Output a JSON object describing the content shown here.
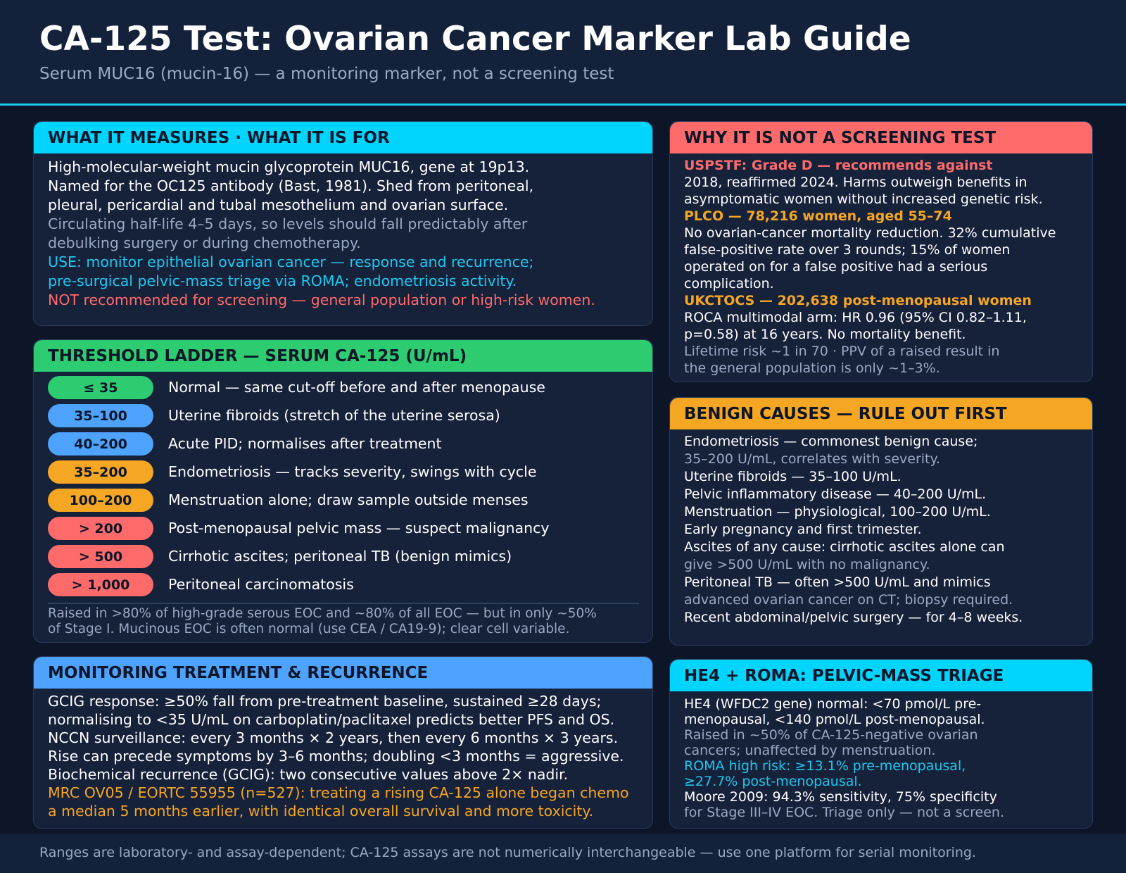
{
  "header": {
    "title": "CA-125 Test: Ovarian Cancer Marker Lab Guide",
    "subtitle": "Serum MUC16 (mucin-16) — a monitoring marker, not a screening test"
  },
  "colors": {
    "cyan": "#1ec8f0",
    "green": "#2ecc71",
    "blue": "#4da3ff",
    "orange": "#f5a623",
    "red": "#ff6b6b"
  },
  "what": {
    "heading": "WHAT IT MEASURES · WHAT IT IS FOR",
    "lines": [
      "High-molecular-weight mucin glycoprotein MUC16, gene at 19p13.",
      "Named for the OC125 antibody (Bast, 1981). Shed from peritoneal,",
      "pleural, pericardial and tubal mesothelium and ovarian surface.",
      "Circulating half-life 4–5 days, so levels should fall predictably after",
      "debulking surgery or during chemotherapy.",
      "USE: monitor epithelial ovarian cancer — response and recurrence;",
      "pre-surgical pelvic-mass triage via ROMA; endometriosis activity.",
      "NOT recommended for screening — general population or high-risk women."
    ]
  },
  "ladder": {
    "heading": "THRESHOLD LADDER — SERUM CA-125 (U/mL)",
    "rungs": [
      {
        "range": "≤ 35",
        "label": "Normal — same cut-off before and after menopause"
      },
      {
        "range": "35–100",
        "label": "Uterine fibroids (stretch of the uterine serosa)"
      },
      {
        "range": "40–200",
        "label": "Acute PID; normalises after treatment"
      },
      {
        "range": "35–200",
        "label": "Endometriosis — tracks severity, swings with cycle"
      },
      {
        "range": "100–200",
        "label": "Menstruation alone; draw sample outside menses"
      },
      {
        "range": "> 200",
        "label": "Post-menopausal pelvic mass — suspect malignancy"
      },
      {
        "range": "> 500",
        "label": "Cirrhotic ascites; peritoneal TB (benign mimics)"
      },
      {
        "range": "> 1,000",
        "label": "Peritoneal carcinomatosis"
      }
    ],
    "note_lines": [
      "Raised in >80% of high-grade serous EOC and ~80% of all EOC — but in only ~50%",
      "of Stage I. Mucinous EOC is often normal (use CEA / CA19-9); clear cell variable."
    ]
  },
  "monitor": {
    "heading": "MONITORING TREATMENT & RECURRENCE",
    "lines": [
      "GCIG response: ≥50% fall from pre-treatment baseline, sustained ≥28 days;",
      "normalising to <35 U/mL on carboplatin/paclitaxel predicts better PFS and OS.",
      "NCCN surveillance: every 3 months × 2 years, then every 6 months × 3 years.",
      "Rise can precede symptoms by 3–6 months; doubling <3 months = aggressive.",
      "Biochemical recurrence (GCIG): two consecutive values above 2× nadir.",
      "MRC OV05 / EORTC 55955 (n=527): treating a rising CA-125 alone began chemo",
      "a median 5 months earlier, with identical overall survival and more toxicity."
    ]
  },
  "why": {
    "heading": "WHY IT IS NOT A SCREENING TEST",
    "lines": [
      "USPSTF: Grade D — recommends against",
      "2018, reaffirmed 2024. Harms outweigh benefits in",
      "asymptomatic women without increased genetic risk.",
      "PLCO — 78,216 women, aged 55–74",
      "No ovarian-cancer mortality reduction. 32% cumulative",
      "false-positive rate over 3 rounds; 15% of women",
      "operated on for a false positive had a serious",
      "complication.",
      "UKCTOCS — 202,638 post-menopausal women",
      "ROCA multimodal arm: HR 0.96 (95% CI 0.82–1.11,",
      "p=0.58) at 16 years. No mortality benefit.",
      "Lifetime risk ~1 in 70 · PPV of a raised result in",
      "the general population is only ~1–3%."
    ]
  },
  "benign": {
    "heading": "BENIGN CAUSES — RULE OUT FIRST",
    "lines": [
      "Endometriosis — commonest benign cause;",
      "35–200 U/mL, correlates with severity.",
      "Uterine fibroids — 35–100 U/mL.",
      "Pelvic inflammatory disease — 40–200 U/mL.",
      "Menstruation — physiological, 100–200 U/mL.",
      "Early pregnancy and first trimester.",
      "Ascites of any cause: cirrhotic ascites alone can",
      "give >500 U/mL with no malignancy.",
      "Peritoneal TB — often >500 U/mL and mimics",
      "advanced ovarian cancer on CT; biopsy required.",
      "Recent abdominal/pelvic surgery — for 4–8 weeks."
    ]
  },
  "he4": {
    "heading": "HE4 + ROMA: PELVIC-MASS TRIAGE",
    "lines": [
      "HE4 (WFDC2 gene) normal: <70 pmol/L pre-",
      "menopausal, <140 pmol/L post-menopausal.",
      "Raised in ~50% of CA-125-negative ovarian",
      "cancers; unaffected by menstruation.",
      "ROMA high risk: ≥13.1% pre-menopausal,",
      "≥27.7% post-menopausal.",
      "Moore 2009: 94.3% sensitivity, 75% specificity",
      "for Stage III–IV EOC. Triage only — not a screen."
    ]
  },
  "footer": {
    "text": "Ranges are laboratory- and assay-dependent; CA-125 assays are not numerically interchangeable — use one platform for serial monitoring."
  }
}
